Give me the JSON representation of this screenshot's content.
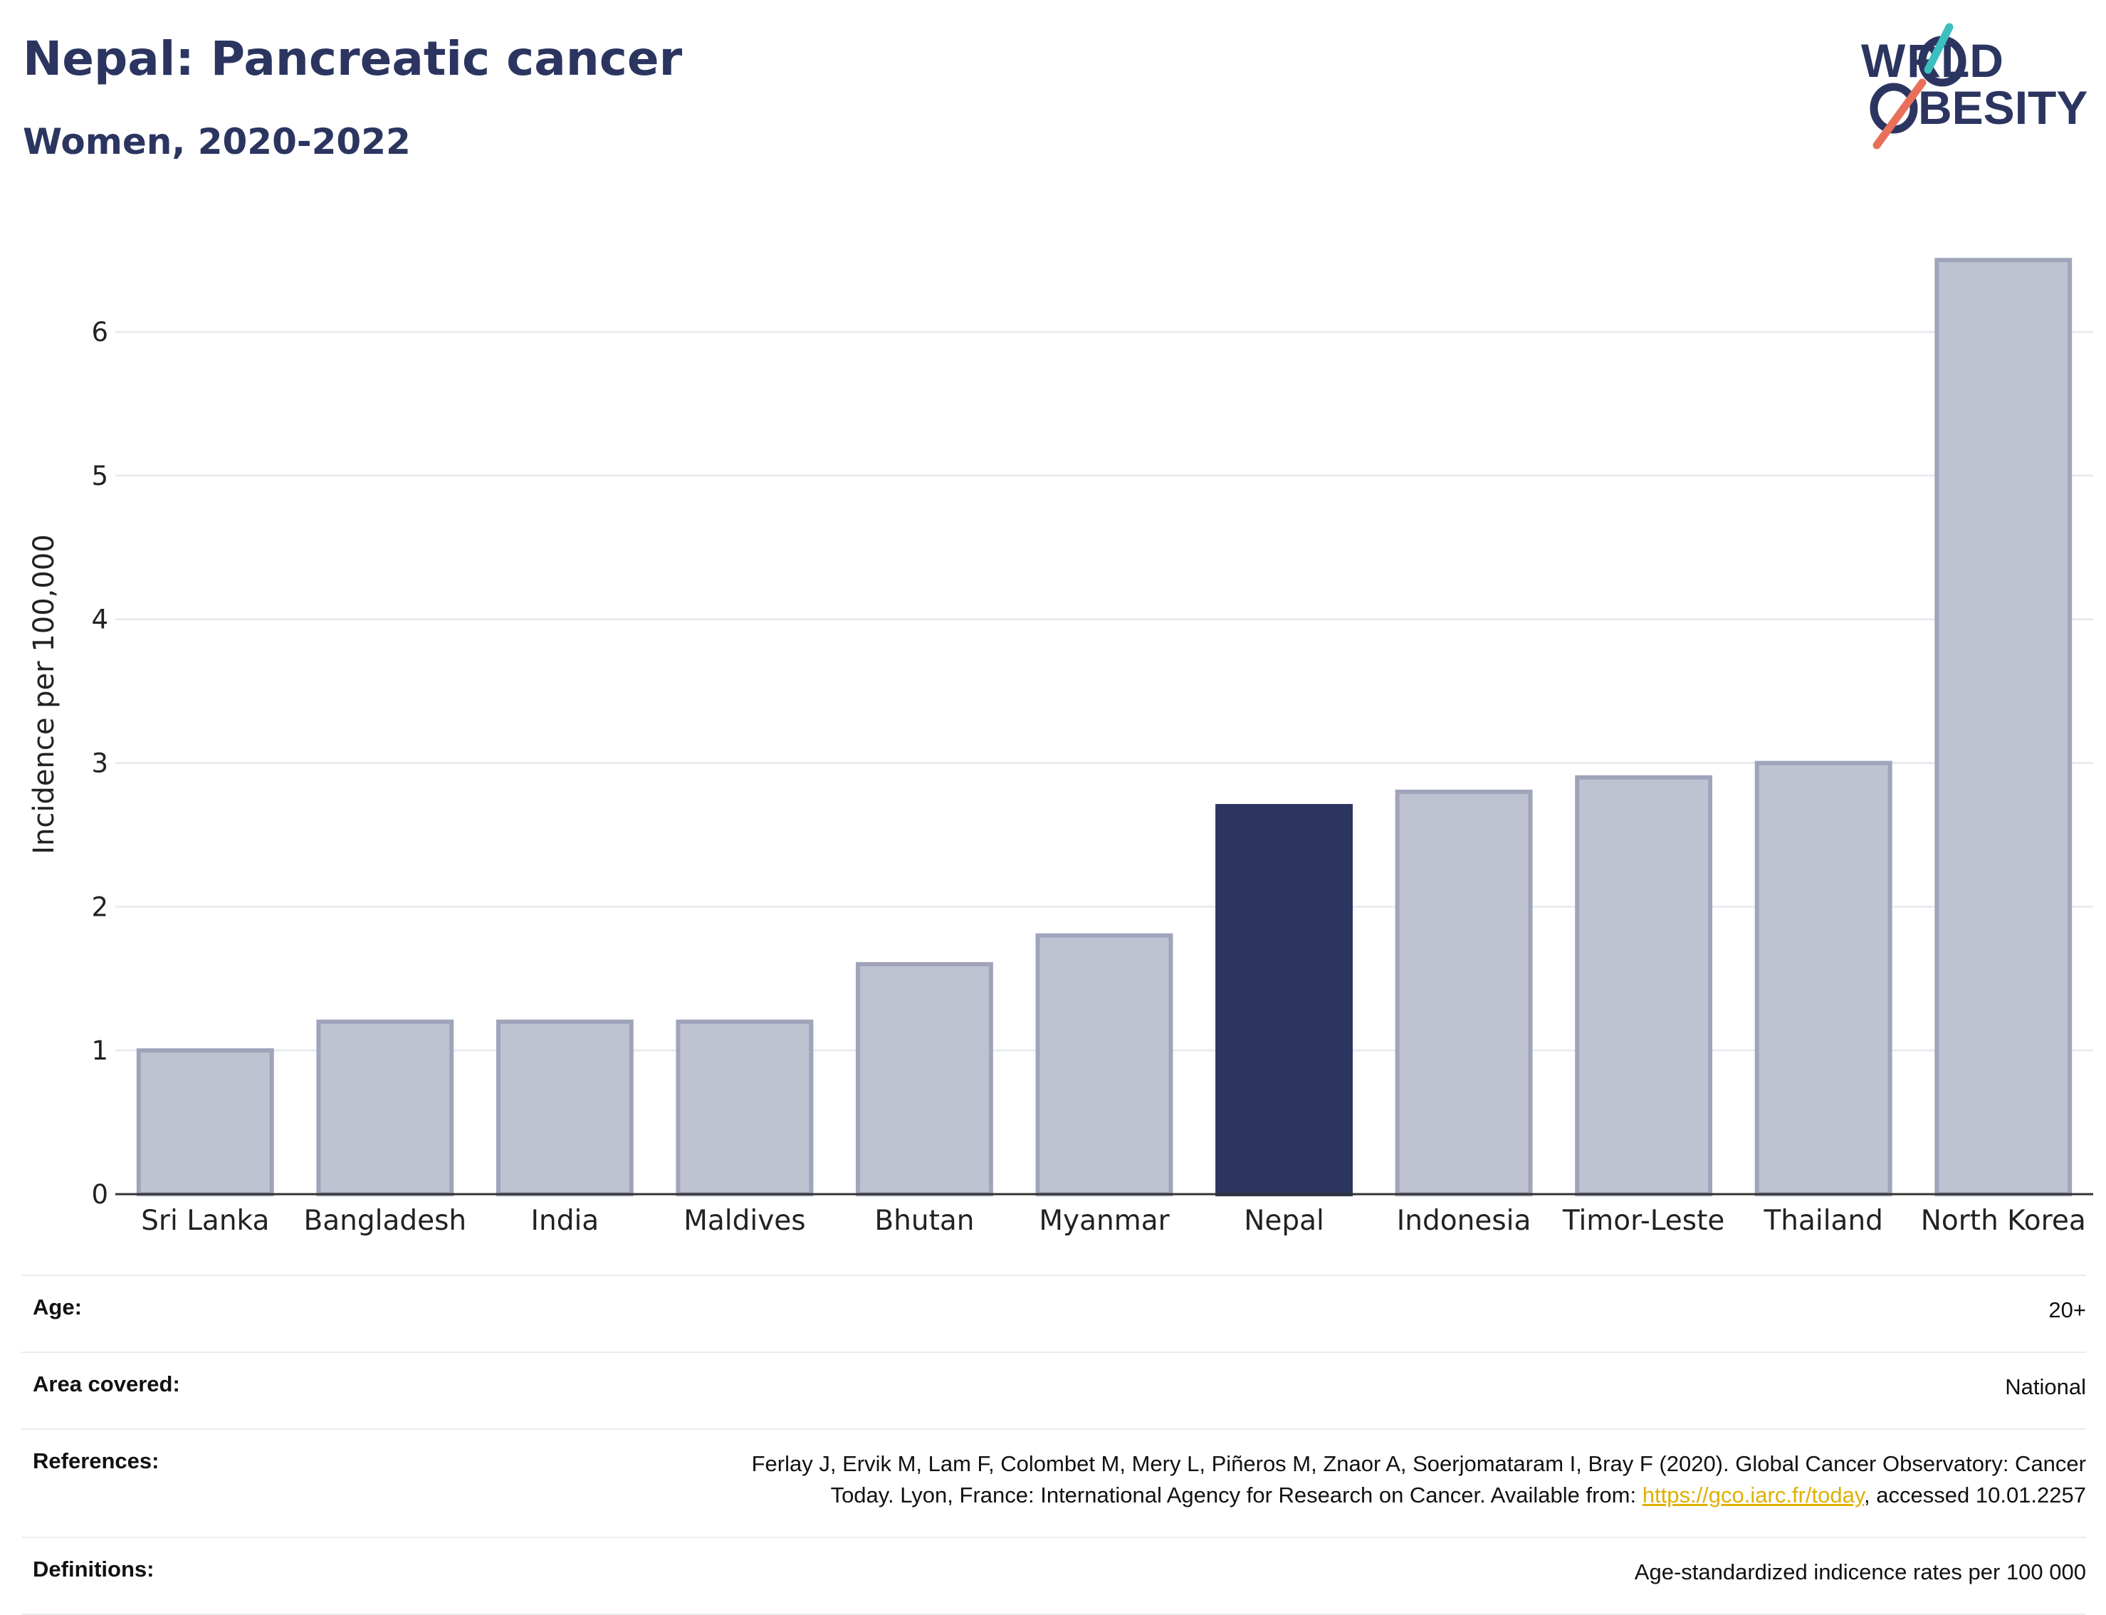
{
  "header": {
    "title": "Nepal: Pancreatic cancer",
    "subtitle": "Women, 2020-2022"
  },
  "logo": {
    "line1": "W",
    "line1_rest": "RLD",
    "line2": "BESITY",
    "accent_colors": [
      "#3bbfbf",
      "#e8705a"
    ],
    "text_color": "#2b3560"
  },
  "chart_data": {
    "type": "bar",
    "categories": [
      "Sri Lanka",
      "Bangladesh",
      "India",
      "Maldives",
      "Bhutan",
      "Myanmar",
      "Nepal",
      "Indonesia",
      "Timor-Leste",
      "Thailand",
      "North Korea"
    ],
    "values": [
      1.0,
      1.2,
      1.2,
      1.2,
      1.6,
      1.8,
      2.7,
      2.8,
      2.9,
      3.0,
      6.5
    ],
    "highlight": "Nepal",
    "ylabel": "Incidence per 100,000",
    "ylim": [
      0,
      6.6
    ],
    "yticks": [
      0,
      1,
      2,
      3,
      4,
      5,
      6
    ],
    "grid": true,
    "colors": {
      "bar": "#bfc2d1",
      "bar_edge": "#9fa4bb",
      "highlight": "#2b3560",
      "grid": "#e8ebef",
      "axis": "#333333"
    }
  },
  "info": {
    "age_label": "Age:",
    "age_value": "20+",
    "area_label": "Area covered:",
    "area_value": "National",
    "references_label": "References:",
    "references_line1": "Ferlay J, Ervik M, Lam F, Colombet M, Mery L, Piñeros M, Znaor A, Soerjomataram I, Bray F (2020). Global Cancer Observatory: Cancer",
    "references_line2_pre": "Today. Lyon, France: International Agency for Research on Cancer. Available from: ",
    "references_link": "https://gco.iarc.fr/today",
    "references_line2_post": ", accessed 10.01.2257",
    "definitions_label": "Definitions:",
    "definitions_value": "Age-standardized indicence rates per 100 000"
  }
}
